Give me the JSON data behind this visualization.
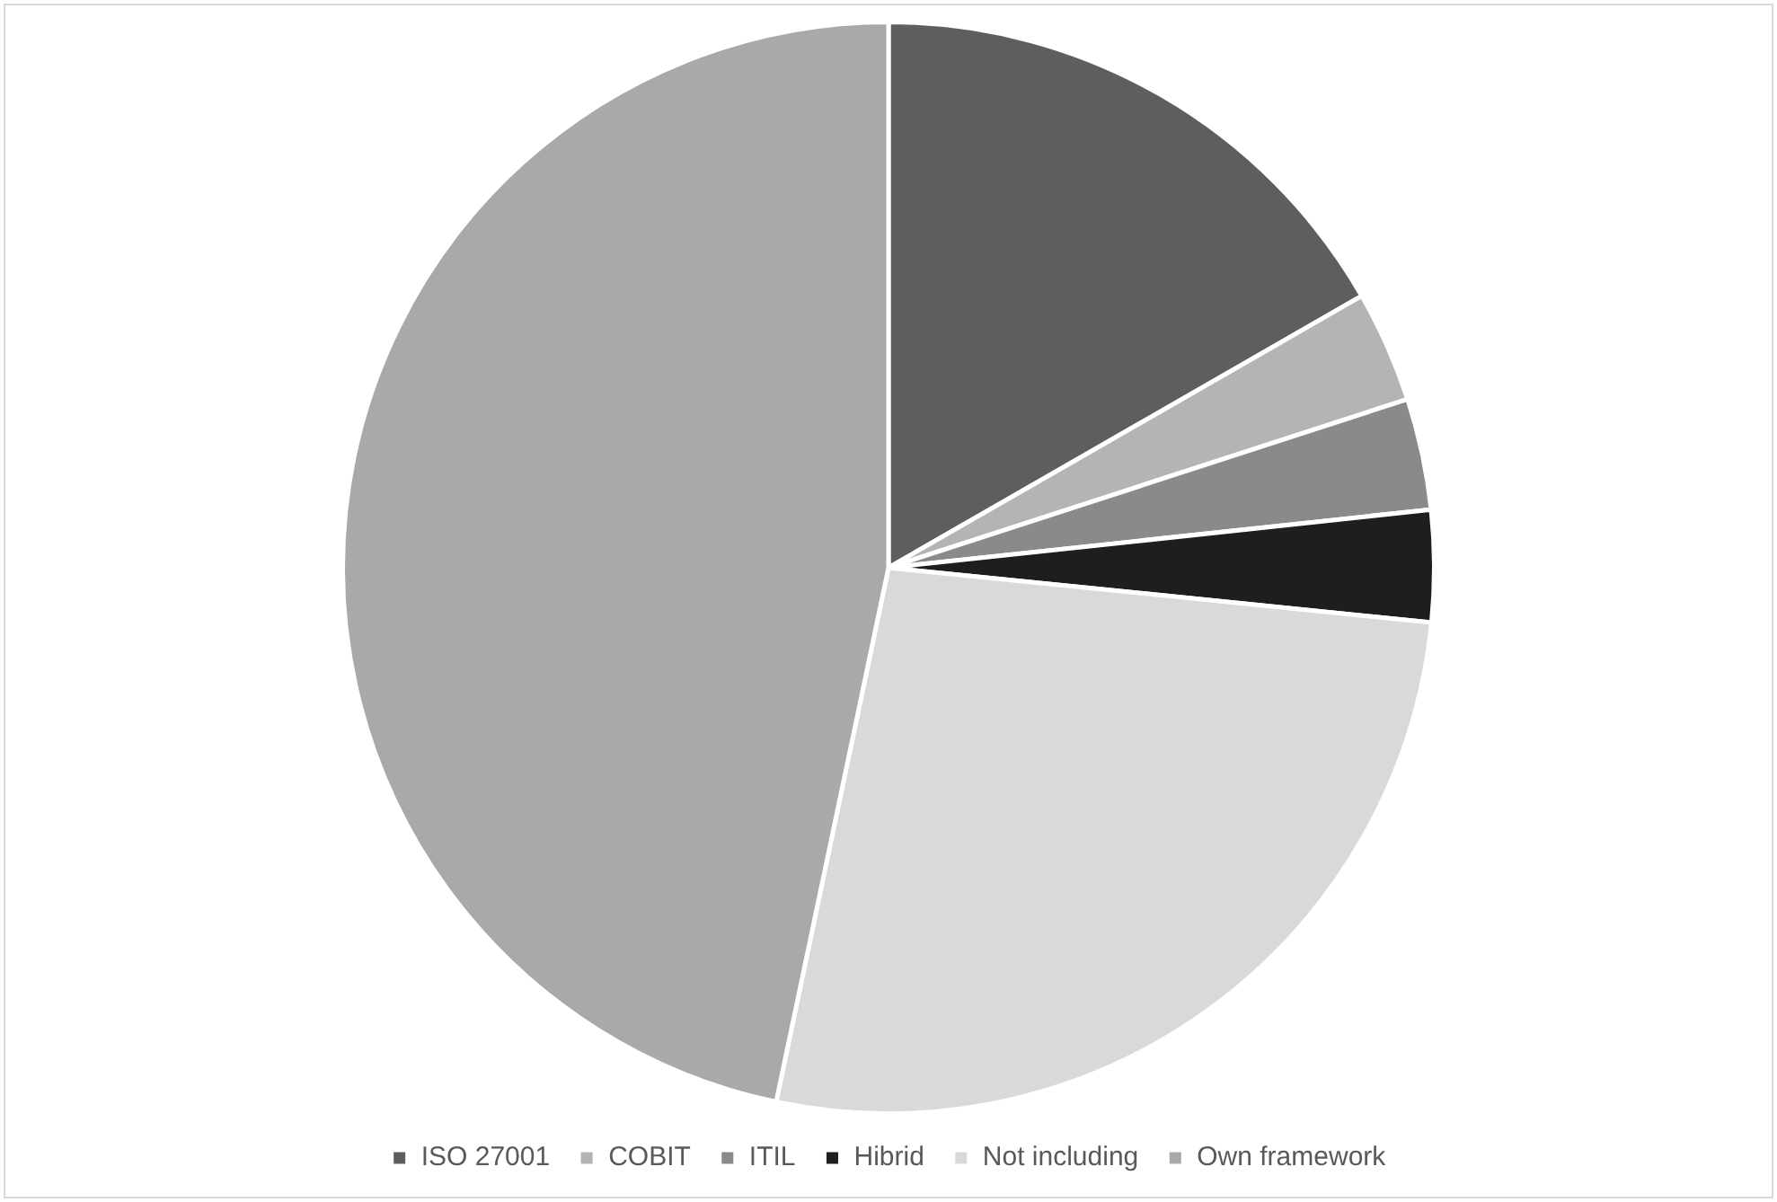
{
  "chart_data": {
    "type": "pie",
    "categories": [
      "ISO 27001",
      "COBIT",
      "ITIL",
      "Hibrid",
      "Not including",
      "Own framework"
    ],
    "values": [
      16.7,
      3.3,
      3.3,
      3.3,
      26.7,
      46.7
    ],
    "colors": [
      "#5e5e5e",
      "#b4b4b4",
      "#8a8a8a",
      "#1e1e1e",
      "#d9d9d9",
      "#a9a9a9"
    ],
    "legend": "bottom"
  }
}
